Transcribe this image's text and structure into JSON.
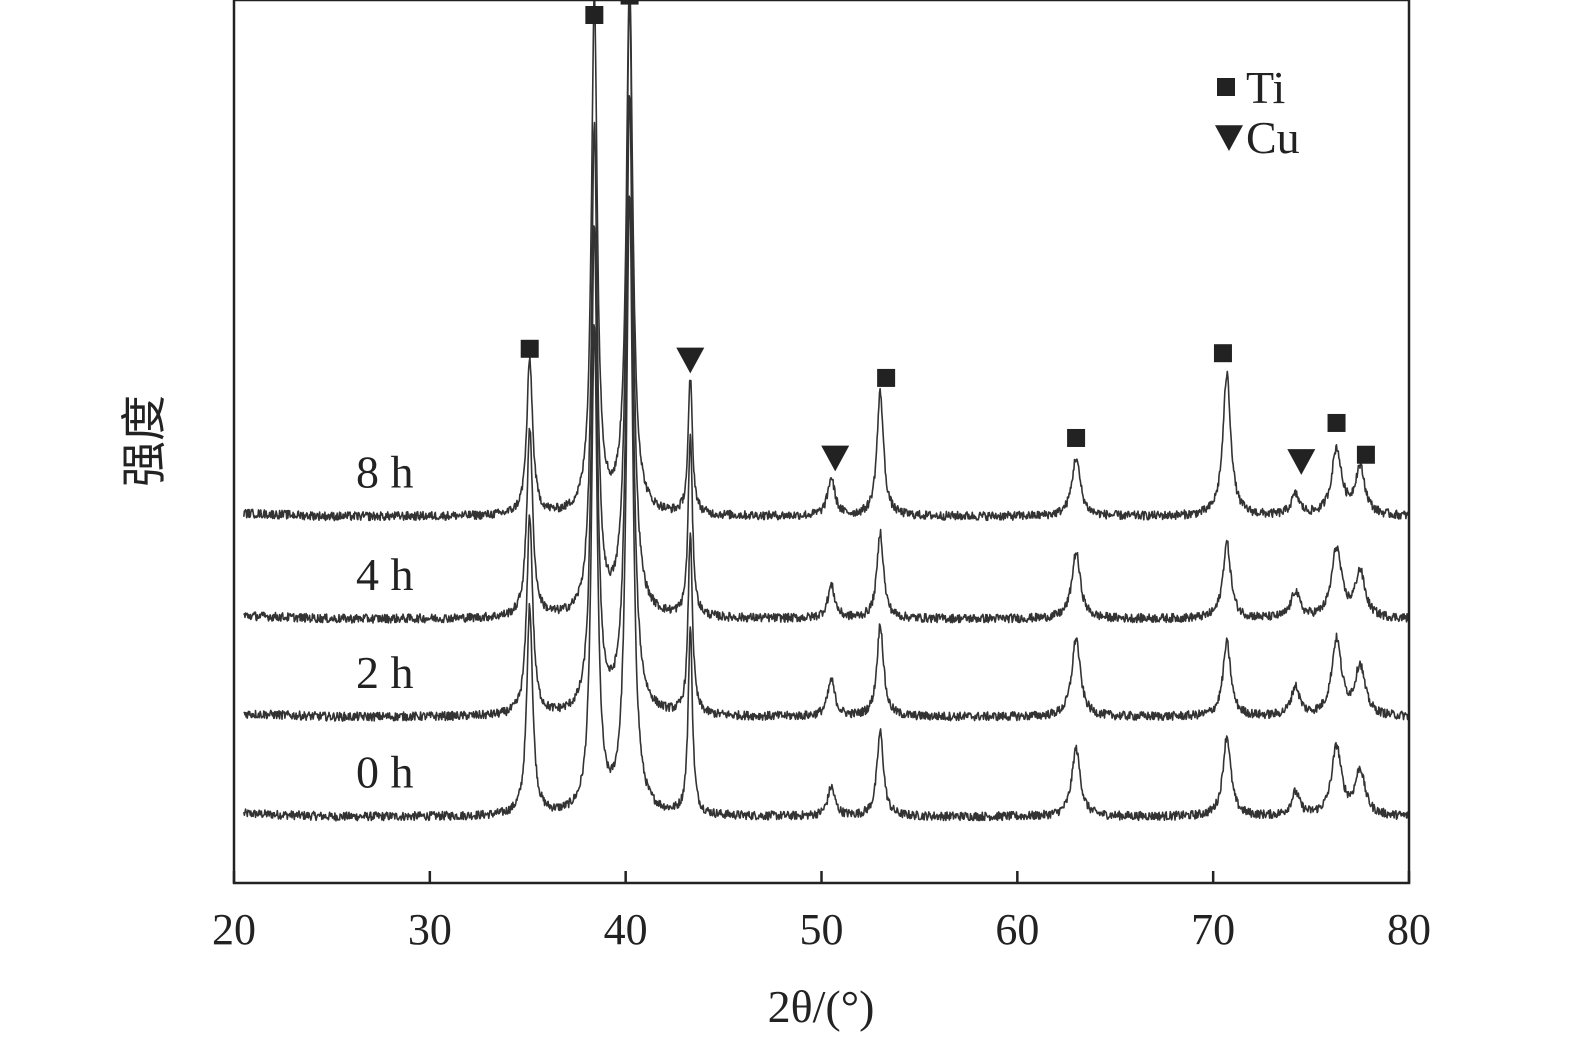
{
  "chart_data": {
    "type": "line",
    "title": "",
    "xlabel": "2θ/(°)",
    "ylabel": "强度",
    "xlim": [
      20,
      80
    ],
    "xticks": [
      20,
      30,
      40,
      50,
      60,
      70,
      80
    ],
    "xtick_labels": [
      "20",
      "30",
      "40",
      "50",
      "60",
      "70",
      "80"
    ],
    "ylim": [
      0,
      100
    ],
    "y_ticks_shown": false,
    "grid": false,
    "legend": {
      "position": "top-right",
      "entries": [
        {
          "label": "Ti",
          "marker": "square"
        },
        {
          "label": "Cu",
          "marker": "triangle-down"
        }
      ]
    },
    "series": [
      {
        "name": "0 h",
        "baseline": 7.5,
        "peaks": [
          {
            "x": 35.1,
            "h": 23.7,
            "w": 0.18
          },
          {
            "x": 38.4,
            "h": 55,
            "w": 0.18
          },
          {
            "x": 40.2,
            "h": 70,
            "w": 0.2
          },
          {
            "x": 43.3,
            "h": 21.1,
            "w": 0.13
          },
          {
            "x": 50.5,
            "h": 3.3,
            "w": 0.22
          },
          {
            "x": 53.0,
            "h": 9.6,
            "w": 0.2
          },
          {
            "x": 63.0,
            "h": 7.7,
            "w": 0.26
          },
          {
            "x": 70.7,
            "h": 9.1,
            "w": 0.24
          },
          {
            "x": 74.2,
            "h": 2.6,
            "w": 0.26
          },
          {
            "x": 76.3,
            "h": 7.8,
            "w": 0.3
          },
          {
            "x": 77.5,
            "h": 5.1,
            "w": 0.3
          }
        ]
      },
      {
        "name": "2 h",
        "baseline": 18.8,
        "peaks": [
          {
            "x": 35.1,
            "h": 22.6,
            "w": 0.18
          },
          {
            "x": 38.4,
            "h": 55,
            "w": 0.18
          },
          {
            "x": 40.2,
            "h": 70,
            "w": 0.2
          },
          {
            "x": 43.3,
            "h": 20.4,
            "w": 0.13
          },
          {
            "x": 50.5,
            "h": 4.1,
            "w": 0.22
          },
          {
            "x": 53.0,
            "h": 10.5,
            "w": 0.2
          },
          {
            "x": 63.0,
            "h": 8.9,
            "w": 0.26
          },
          {
            "x": 70.7,
            "h": 8.4,
            "w": 0.24
          },
          {
            "x": 74.2,
            "h": 3.3,
            "w": 0.26
          },
          {
            "x": 76.3,
            "h": 8.6,
            "w": 0.3
          },
          {
            "x": 77.5,
            "h": 5.6,
            "w": 0.3
          }
        ]
      },
      {
        "name": "4 h",
        "baseline": 29.9,
        "peaks": [
          {
            "x": 35.1,
            "h": 21.4,
            "w": 0.18
          },
          {
            "x": 38.4,
            "h": 55,
            "w": 0.18
          },
          {
            "x": 40.2,
            "h": 70,
            "w": 0.2
          },
          {
            "x": 43.3,
            "h": 20.4,
            "w": 0.13
          },
          {
            "x": 50.5,
            "h": 3.7,
            "w": 0.22
          },
          {
            "x": 53.0,
            "h": 9.8,
            "w": 0.2
          },
          {
            "x": 63.0,
            "h": 7.5,
            "w": 0.26
          },
          {
            "x": 70.7,
            "h": 8.6,
            "w": 0.24
          },
          {
            "x": 74.2,
            "h": 3.0,
            "w": 0.26
          },
          {
            "x": 76.3,
            "h": 7.9,
            "w": 0.3
          },
          {
            "x": 77.5,
            "h": 5.2,
            "w": 0.3
          }
        ]
      },
      {
        "name": "8 h",
        "baseline": 41.5,
        "peaks": [
          {
            "x": 35.1,
            "h": 17.6,
            "w": 0.18
          },
          {
            "x": 38.4,
            "h": 58.5,
            "w": 0.18
          },
          {
            "x": 40.2,
            "h": 60,
            "w": 0.2
          },
          {
            "x": 43.3,
            "h": 15.4,
            "w": 0.13
          },
          {
            "x": 50.5,
            "h": 4.3,
            "w": 0.22
          },
          {
            "x": 53.0,
            "h": 14.1,
            "w": 0.2
          },
          {
            "x": 63.0,
            "h": 6.6,
            "w": 0.26
          },
          {
            "x": 70.7,
            "h": 16.1,
            "w": 0.24
          },
          {
            "x": 74.2,
            "h": 2.3,
            "w": 0.26
          },
          {
            "x": 76.3,
            "h": 7.5,
            "w": 0.3
          },
          {
            "x": 77.5,
            "h": 5.4,
            "w": 0.3
          }
        ]
      }
    ],
    "annotations": [
      {
        "x": 35.1,
        "y": 60.5,
        "marker": "square",
        "phase": "Ti"
      },
      {
        "x": 38.4,
        "y": 98.3,
        "marker": "square",
        "phase": "Ti"
      },
      {
        "x": 40.2,
        "y": 100.5,
        "marker": "square",
        "phase": "Ti"
      },
      {
        "x": 43.3,
        "y": 59.3,
        "marker": "triangle-down",
        "phase": "Cu"
      },
      {
        "x": 50.7,
        "y": 48.2,
        "marker": "triangle-down",
        "phase": "Cu"
      },
      {
        "x": 53.3,
        "y": 57.2,
        "marker": "square",
        "phase": "Ti"
      },
      {
        "x": 63.0,
        "y": 50.4,
        "marker": "square",
        "phase": "Ti"
      },
      {
        "x": 70.5,
        "y": 60.0,
        "marker": "square",
        "phase": "Ti"
      },
      {
        "x": 74.5,
        "y": 47.8,
        "marker": "triangle-down",
        "phase": "Cu"
      },
      {
        "x": 76.3,
        "y": 52.1,
        "marker": "square",
        "phase": "Ti"
      },
      {
        "x": 77.8,
        "y": 48.5,
        "marker": "square",
        "phase": "Ti"
      }
    ]
  }
}
